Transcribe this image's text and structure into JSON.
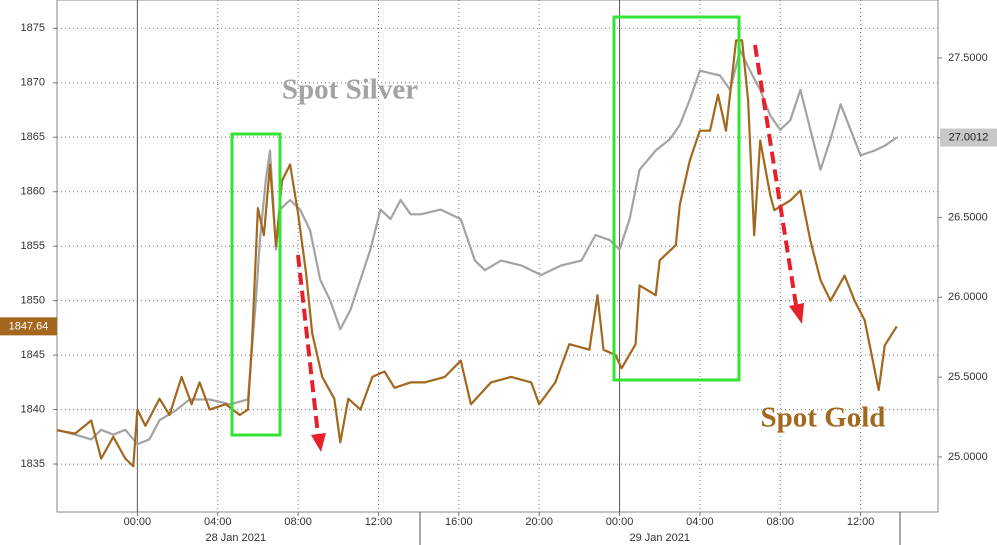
{
  "chart_data": {
    "type": "line",
    "xlim": [
      -4,
      39.85
    ],
    "xticks": [
      {
        "value": 0,
        "label": "00:00"
      },
      {
        "value": 4,
        "label": "04:00"
      },
      {
        "value": 8,
        "label": "08:00"
      },
      {
        "value": 12,
        "label": "12:00"
      },
      {
        "value": 16,
        "label": "16:00"
      },
      {
        "value": 20,
        "label": "20:00"
      },
      {
        "value": 24,
        "label": "00:00"
      },
      {
        "value": 28,
        "label": "04:00"
      },
      {
        "value": 32,
        "label": "08:00"
      },
      {
        "value": 36,
        "label": "12:00"
      }
    ],
    "x_groups": [
      {
        "value": 4.9,
        "label": "28 Jan 2021"
      },
      {
        "value": 26,
        "label": "29 Jan 2021"
      }
    ],
    "ylim": [
      1830.6,
      1877.6
    ],
    "yticks": [
      1835,
      1840,
      1845,
      1850,
      1855,
      1860,
      1865,
      1870,
      1875
    ],
    "y2lim": [
      24.655,
      27.863
    ],
    "y2ticks": [
      {
        "value": 25,
        "label": "25.0000"
      },
      {
        "value": 25.5,
        "label": "25.5000"
      },
      {
        "value": 26,
        "label": "26.0000"
      },
      {
        "value": 26.5,
        "label": "26.5000"
      },
      {
        "value": 27,
        "label": "27.0000"
      },
      {
        "value": 27.5,
        "label": "27.5000"
      }
    ],
    "grid": true,
    "series": [
      {
        "name": "Spot Gold",
        "color": "#a3671d",
        "axis": "y",
        "current": 1847.64,
        "x": [
          -4,
          -3.1,
          -2.3,
          -1.8,
          -1.2,
          -0.6,
          -0.2,
          0,
          0.4,
          1.1,
          1.6,
          2.2,
          2.7,
          3.1,
          3.6,
          4.4,
          5.1,
          5.5,
          5.7,
          6,
          6.3,
          6.6,
          6.9,
          7.2,
          7.6,
          8,
          8.4,
          8.7,
          9.2,
          9.8,
          10.1,
          10.5,
          11.1,
          11.7,
          12.3,
          12.8,
          13.6,
          14.3,
          15.3,
          16.1,
          16.6,
          17.6,
          18.6,
          19.6,
          20,
          20.8,
          21.5,
          22.5,
          22.9,
          23.2,
          23.8,
          24.1,
          24.8,
          25,
          25.8,
          26,
          26.8,
          27,
          27.5,
          28,
          28.5,
          28.9,
          29.3,
          29.8,
          30.1,
          30.4,
          30.7,
          31,
          31.5,
          31.7,
          32.5,
          33,
          33.5,
          34,
          34.5,
          35.2,
          35.7,
          36.2,
          36.9,
          37.2,
          37.8
        ],
        "values": [
          1838.1,
          1837.8,
          1839,
          1835.5,
          1837.5,
          1835.5,
          1834.8,
          1840,
          1838.5,
          1841,
          1839.5,
          1843,
          1840.5,
          1842.5,
          1840,
          1840.5,
          1839.5,
          1840,
          1846,
          1858.5,
          1856,
          1862.5,
          1855,
          1861,
          1862.5,
          1858,
          1852.5,
          1847,
          1843,
          1841,
          1837,
          1841,
          1840,
          1843,
          1843.5,
          1842,
          1842.5,
          1842.5,
          1843,
          1844.5,
          1840.5,
          1842.5,
          1843,
          1842.5,
          1840.5,
          1842.5,
          1846,
          1845.5,
          1850.5,
          1845.5,
          1845,
          1843.8,
          1846,
          1851.4,
          1850.5,
          1853.7,
          1855.1,
          1858.8,
          1862.9,
          1865.6,
          1865.6,
          1868.9,
          1865.6,
          1873.9,
          1873.9,
          1868.4,
          1856,
          1864.7,
          1859.7,
          1858.3,
          1859.2,
          1860.1,
          1855.5,
          1851.9,
          1850,
          1852.3,
          1850,
          1848.2,
          1841.8,
          1845.9,
          1847.64
        ]
      },
      {
        "name": "Spot Silver",
        "color": "#a3a3a3",
        "axis": "y2",
        "current": 27.0012,
        "x": [
          -4,
          -3.1,
          -2.3,
          -1.8,
          -1.2,
          -0.6,
          0,
          0.6,
          1.1,
          1.9,
          2.6,
          3.6,
          4.6,
          5.5,
          5.9,
          6.1,
          6.4,
          6.6,
          6.9,
          7.1,
          7.6,
          8.1,
          8.6,
          9.1,
          9.6,
          10.1,
          10.6,
          11.1,
          11.6,
          12.1,
          12.6,
          13.1,
          13.6,
          14.1,
          15.1,
          16.1,
          16.8,
          17.3,
          18.1,
          19.1,
          20.1,
          21.1,
          22.1,
          22.8,
          23.5,
          24,
          24.5,
          25,
          25.8,
          26.5,
          27,
          27.5,
          28,
          29,
          29.5,
          30,
          30.5,
          31,
          31.5,
          32,
          32.5,
          33,
          33.5,
          34,
          34.5,
          35,
          35.5,
          36,
          36.7,
          37.2,
          37.8
        ],
        "values": [
          25.17,
          25.14,
          25.11,
          25.17,
          25.14,
          25.17,
          25.08,
          25.11,
          25.23,
          25.29,
          25.36,
          25.36,
          25.33,
          25.36,
          25.98,
          26.36,
          26.74,
          26.92,
          26.3,
          26.55,
          26.61,
          26.55,
          26.42,
          26.11,
          25.98,
          25.8,
          25.92,
          26.11,
          26.3,
          26.55,
          26.49,
          26.61,
          26.52,
          26.52,
          26.55,
          26.49,
          26.23,
          26.17,
          26.23,
          26.2,
          26.14,
          26.2,
          26.23,
          26.39,
          26.36,
          26.3,
          26.49,
          26.8,
          26.92,
          26.99,
          27.08,
          27.24,
          27.42,
          27.39,
          27.3,
          27.55,
          27.42,
          27.3,
          27.14,
          27.05,
          27.11,
          27.3,
          27.05,
          26.8,
          26.99,
          27.21,
          27.05,
          26.89,
          26.92,
          26.95,
          27.0012
        ]
      }
    ]
  }
}
